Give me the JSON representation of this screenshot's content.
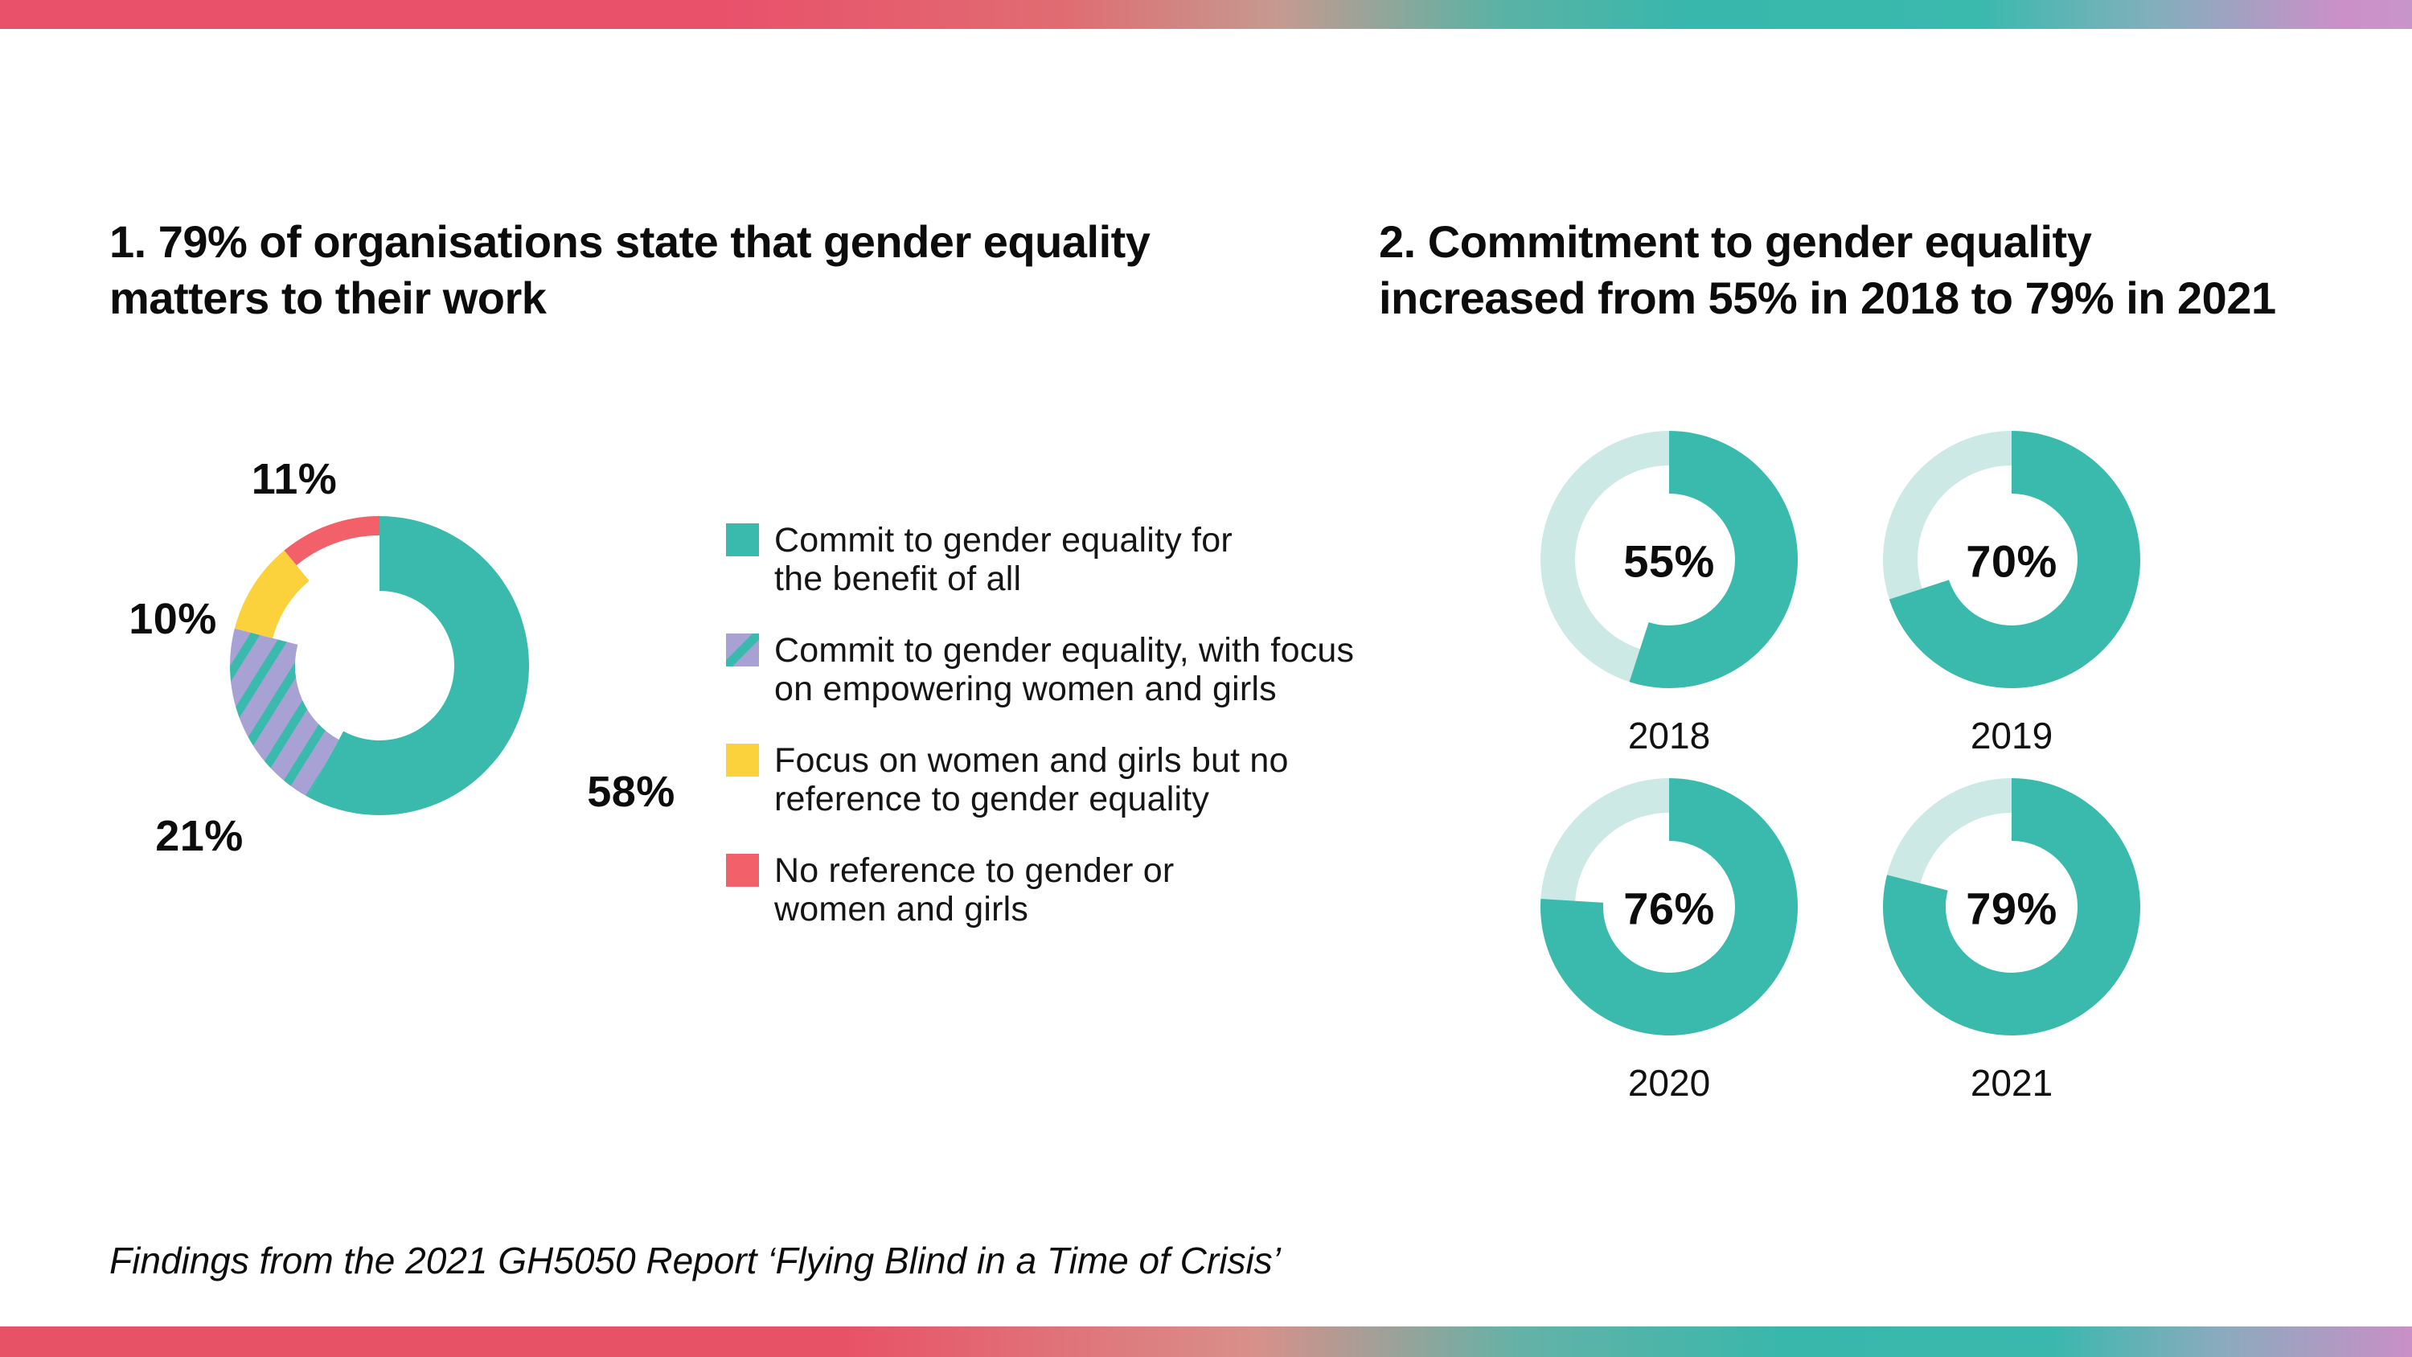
{
  "footer": {
    "text": "Findings from the 2021 GH5050 Report ‘Flying Blind in a Time of Crisis’"
  },
  "colors": {
    "teal": "#3abaac",
    "teal_light": "#cde9e5",
    "purple": "#a8a1d3",
    "yellow": "#fbd23c",
    "red": "#f2606a",
    "text": "#0c0c0c",
    "gradient_red": "#e9516b",
    "gradient_teal": "#3ab8ad",
    "gradient_pink": "#cb90c8"
  },
  "chart_data": [
    {
      "type": "pie",
      "subtype": "donut-variable-thickness",
      "title": "1. 79% of organisations state that gender equality matters to their work",
      "title_lines": [
        "1. 79% of organisations state that gender equality",
        "matters to their work"
      ],
      "values": [
        58,
        21,
        10,
        11
      ],
      "value_labels": [
        "58%",
        "21%",
        "10%",
        "11%"
      ],
      "colors": [
        "#3abaac",
        "#a8a1d3",
        "#fbd23c",
        "#f2606a"
      ],
      "patterns": [
        "solid",
        "teal-diagonal-hatch",
        "solid",
        "solid"
      ],
      "start_angle_deg": 0,
      "direction": "clockwise",
      "legend_position": "right",
      "labels": [
        "Commit to gender equality for the benefit of all",
        "Commit to gender equality, with focus on empowering women and girls",
        "Focus on women and girls but no reference to gender equality",
        "No reference to gender or women and girls"
      ],
      "legend_lines": [
        [
          "Commit to gender equality for",
          "the benefit of all"
        ],
        [
          "Commit to gender equality, with focus",
          "on empowering women and girls"
        ],
        [
          "Focus on women and girls but no",
          "reference to gender equality"
        ],
        [
          "No reference to gender or",
          "women and girls"
        ]
      ]
    },
    {
      "type": "pie",
      "subtype": "donut-small-multiples",
      "title": "2. Commitment to gender equality increased from 55% in 2018 to 79% in 2021",
      "title_lines": [
        "2. Commitment to gender equality",
        "increased from 55% in 2018 to 79% in 2021"
      ],
      "categories": [
        "2018",
        "2019",
        "2020",
        "2021"
      ],
      "values": [
        55,
        70,
        76,
        79
      ],
      "value_labels": [
        "55%",
        "70%",
        "76%",
        "79%"
      ],
      "filled_color": "#3abaac",
      "remainder_color": "#cde9e5",
      "start_angle_deg": 0,
      "direction": "clockwise"
    }
  ]
}
